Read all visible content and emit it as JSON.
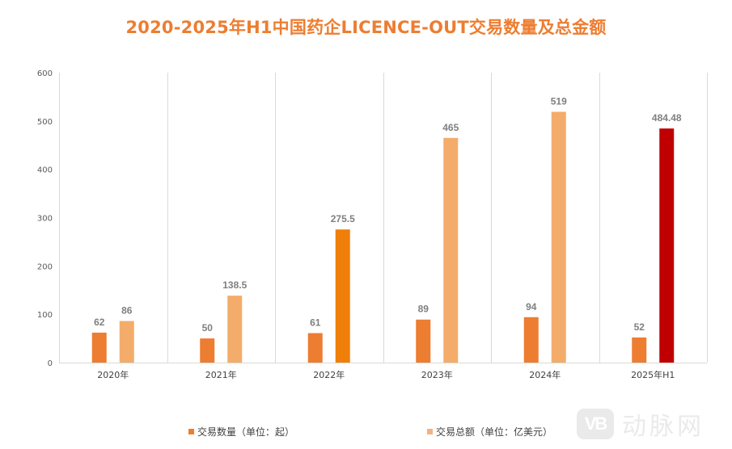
{
  "chart_data": {
    "type": "bar",
    "title": "2020-2025年H1中国药企LICENCE-OUT交易数量及总金额",
    "xlabel": "",
    "ylabel": "",
    "ylim": [
      0,
      600
    ],
    "yticks": [
      0,
      100,
      200,
      300,
      400,
      500,
      600
    ],
    "ytick_labels": [
      "0",
      "100",
      "200",
      "300",
      "400",
      "500",
      "600"
    ],
    "grid": "vertical category separators only",
    "legend_position": "bottom",
    "categories": [
      "2020年",
      "2021年",
      "2022年",
      "2023年",
      "2024年",
      "2025年H1"
    ],
    "series": [
      {
        "name": "交易数量（单位：起）",
        "color": "#ED7D31",
        "values": [
          62,
          50,
          61,
          89,
          94,
          52
        ],
        "labels": [
          "62",
          "50",
          "61",
          "89",
          "94",
          "52"
        ],
        "point_colors": [
          "#ED7D31",
          "#ED7D31",
          "#ED7D31",
          "#ED7D31",
          "#ED7D31",
          "#ED7D31"
        ]
      },
      {
        "name": "交易总额（单位：亿美元）",
        "color": "#F4B183",
        "values": [
          86,
          138.5,
          275.5,
          465,
          519,
          484.48
        ],
        "labels": [
          "86",
          "138.5",
          "275.5",
          "465",
          "519",
          "484.48"
        ],
        "point_colors": [
          "#F4AC6A",
          "#F4AC6A",
          "#F07F09",
          "#F4AC6A",
          "#F4AC6A",
          "#C00000"
        ]
      }
    ]
  },
  "colors": {
    "title": "#ED7D31",
    "label": "#7F7F7F",
    "grid": "#D9D9D9"
  },
  "watermark": {
    "logo": "VB",
    "text": "动脉网"
  }
}
